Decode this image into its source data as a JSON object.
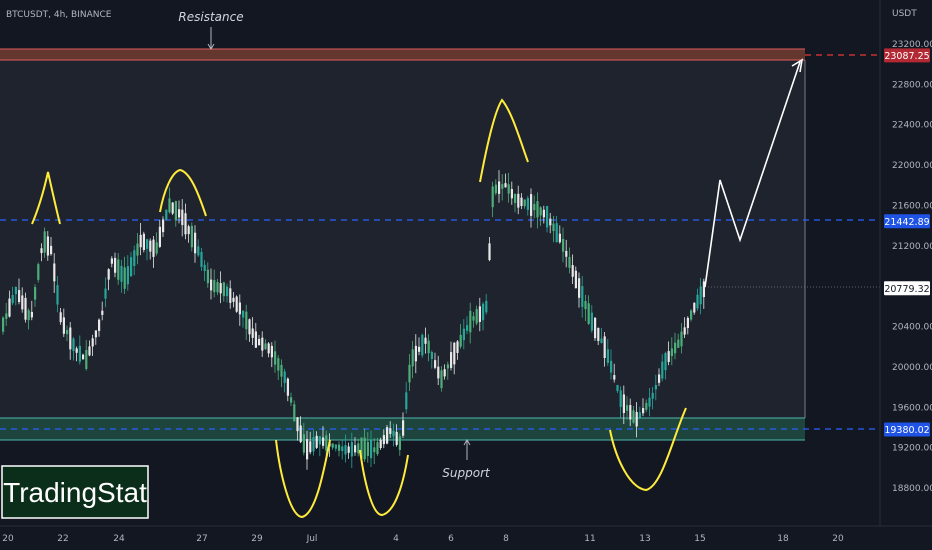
{
  "symbol_line": "BTCUSDT, 4h, BINANCE",
  "currency": "USDT",
  "annotations": {
    "resistance": "Resistance",
    "support": "Support"
  },
  "logo": {
    "text": "TradingStat"
  },
  "price_axis": {
    "ticks": [
      "23200.00",
      "22800.00",
      "22400.00",
      "22000.00",
      "21600.00",
      "21200.00",
      "20400.00",
      "20000.00",
      "19600.00",
      "19200.00",
      "18800.00"
    ],
    "tick_values": [
      23200,
      22800,
      22400,
      22000,
      21600,
      21200,
      20400,
      20000,
      19600,
      19200,
      18800
    ]
  },
  "price_badges": [
    {
      "label": "23087.25",
      "value": 23087.25,
      "color": "#b22833"
    },
    {
      "label": "21442.89",
      "value": 21442.89,
      "color": "#1e53e5"
    },
    {
      "label": "20779.32",
      "value": 20779.32,
      "color": "#ffffff"
    },
    {
      "label": "19380.02",
      "value": 19380.02,
      "color": "#1e53e5"
    }
  ],
  "time_axis": {
    "labels": [
      "20",
      "22",
      "24",
      "27",
      "29",
      "Jul",
      "4",
      "6",
      "8",
      "11",
      "13",
      "15",
      "18",
      "20"
    ]
  },
  "colors": {
    "background": "#131722",
    "up_candle": "#26a69a",
    "up_candle_light": "#4caf7a",
    "down_candle": "#ffffff",
    "resistance_zone": "#8b4a3c",
    "support_zone": "#2e6e5a",
    "drawing_yellow": "#ffeb3b",
    "projection": "#ffffff"
  }
}
